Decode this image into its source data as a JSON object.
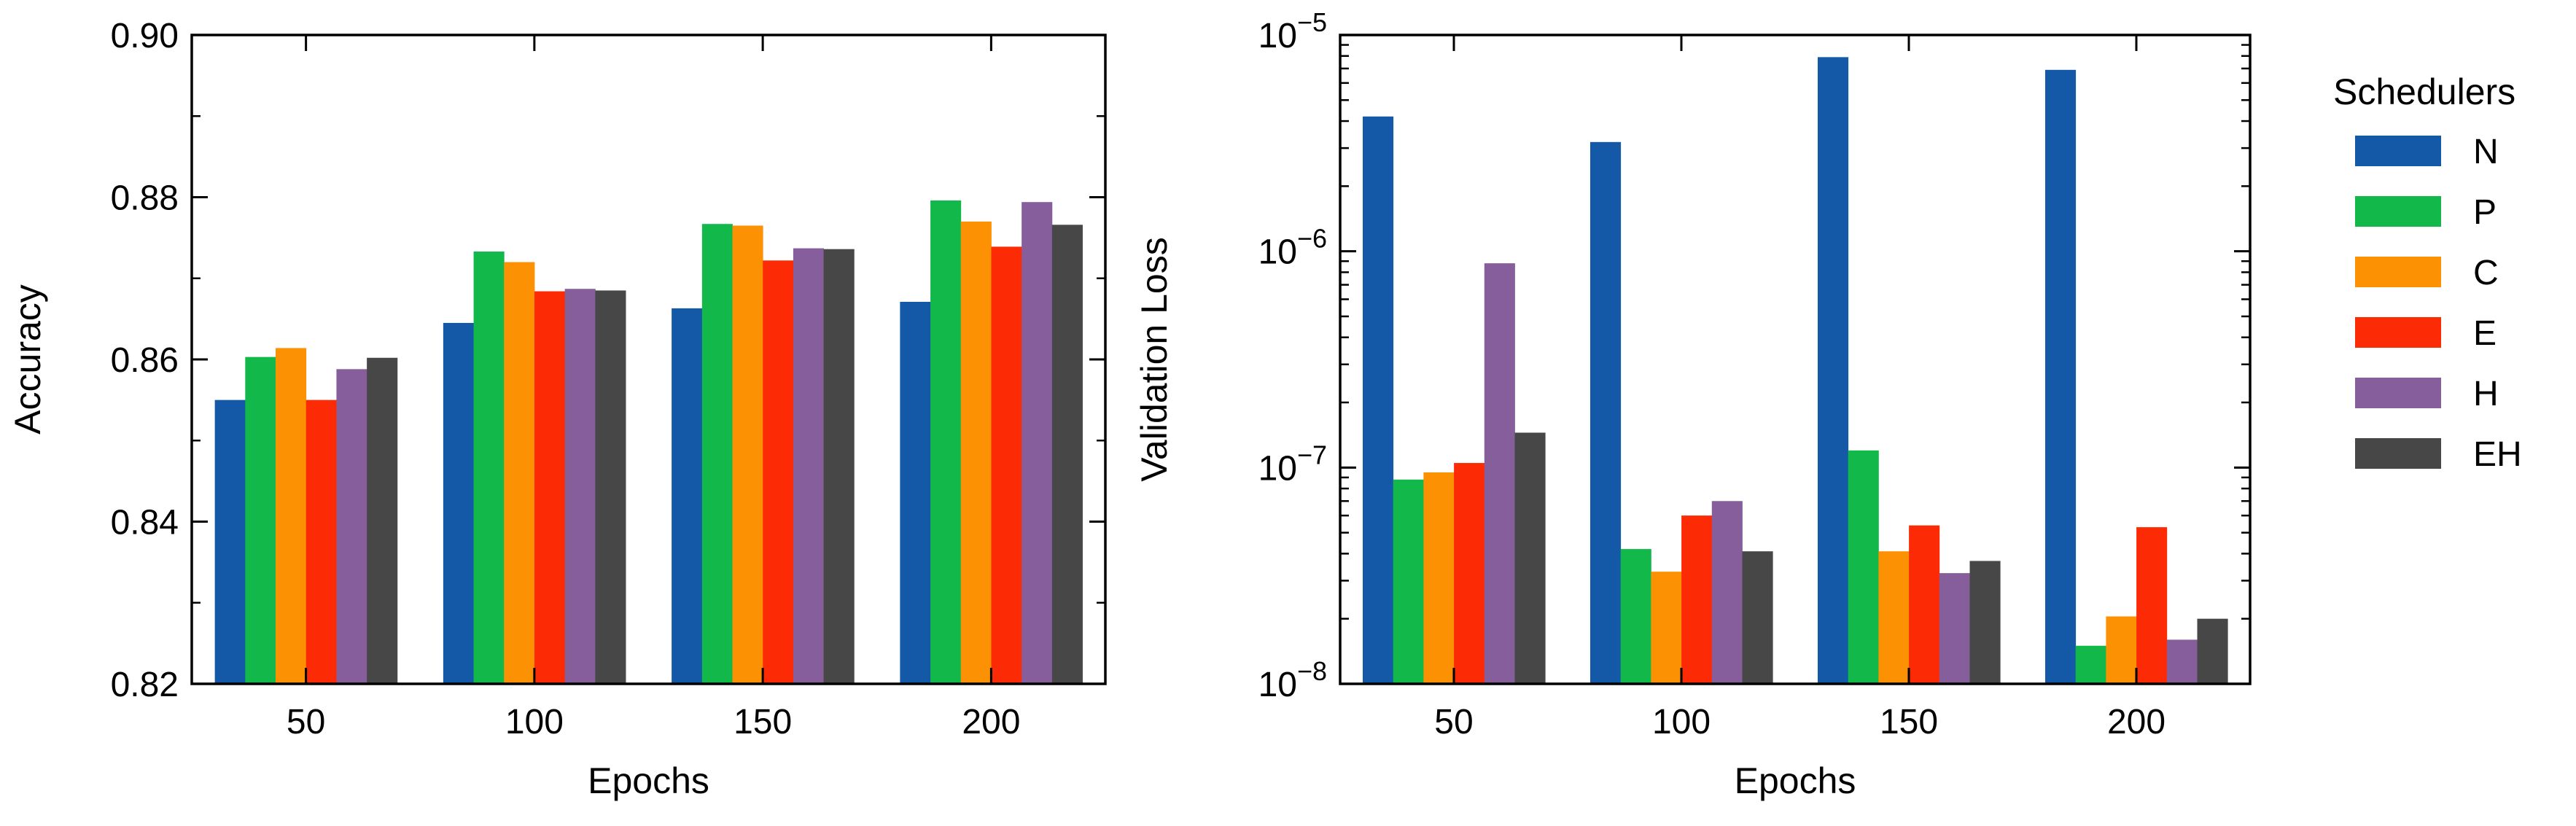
{
  "colors": {
    "N": "#1459a8",
    "P": "#12b84a",
    "C": "#fd9104",
    "E": "#fd2b05",
    "H": "#865e9c",
    "EH": "#474747"
  },
  "legend": {
    "title": "Schedulers",
    "items": [
      "N",
      "P",
      "C",
      "E",
      "H",
      "EH"
    ]
  },
  "chart_data": [
    {
      "type": "bar",
      "xlabel": "Epochs",
      "ylabel": "Accuracy",
      "categories": [
        "50",
        "100",
        "150",
        "200"
      ],
      "ylim": [
        0.82,
        0.9
      ],
      "yticks": [
        0.82,
        0.84,
        0.86,
        0.88,
        0.9
      ],
      "ytick_labels": [
        "0.82",
        "0.84",
        "0.86",
        "0.88",
        "0.90"
      ],
      "yscale": "linear",
      "series": [
        {
          "name": "N",
          "values": [
            0.855,
            0.8645,
            0.8663,
            0.8671
          ]
        },
        {
          "name": "P",
          "values": [
            0.8603,
            0.8733,
            0.8767,
            0.8796
          ]
        },
        {
          "name": "C",
          "values": [
            0.8614,
            0.872,
            0.8765,
            0.877
          ]
        },
        {
          "name": "E",
          "values": [
            0.855,
            0.8684,
            0.8722,
            0.8739
          ]
        },
        {
          "name": "H",
          "values": [
            0.8588,
            0.8687,
            0.8737,
            0.8794
          ]
        },
        {
          "name": "EH",
          "values": [
            0.8602,
            0.8685,
            0.8736,
            0.8766
          ]
        }
      ]
    },
    {
      "type": "bar",
      "xlabel": "Epochs",
      "ylabel": "Validation Loss",
      "categories": [
        "50",
        "100",
        "150",
        "200"
      ],
      "ylim": [
        1e-08,
        1e-05
      ],
      "yscale": "log",
      "yticks": [
        1e-08,
        1e-07,
        1e-06,
        1e-05
      ],
      "ytick_labels": [
        {
          "base": "10",
          "exp": "−8"
        },
        {
          "base": "10",
          "exp": "−7"
        },
        {
          "base": "10",
          "exp": "−6"
        },
        {
          "base": "10",
          "exp": "−5"
        }
      ],
      "series": [
        {
          "name": "N",
          "values": [
            4.2e-06,
            3.2e-06,
            7.9e-06,
            6.9e-06
          ]
        },
        {
          "name": "P",
          "values": [
            8.8e-08,
            4.2e-08,
            1.2e-07,
            1.5e-08
          ]
        },
        {
          "name": "C",
          "values": [
            9.5e-08,
            3.3e-08,
            4.1e-08,
            2.05e-08
          ]
        },
        {
          "name": "E",
          "values": [
            1.05e-07,
            6e-08,
            5.4e-08,
            5.3e-08
          ]
        },
        {
          "name": "H",
          "values": [
            8.8e-07,
            7e-08,
            3.25e-08,
            1.6e-08
          ]
        },
        {
          "name": "EH",
          "values": [
            1.45e-07,
            4.1e-08,
            3.7e-08,
            2e-08
          ]
        }
      ]
    }
  ]
}
